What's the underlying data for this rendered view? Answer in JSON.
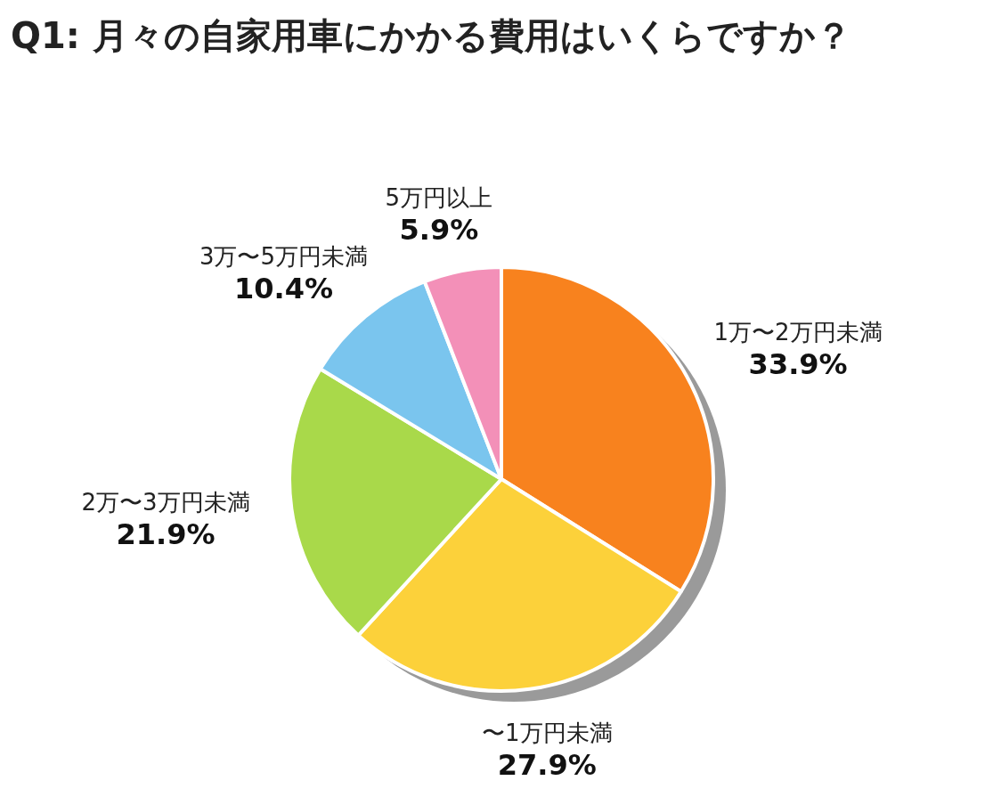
{
  "chart_data": {
    "type": "pie",
    "title": "Q1: 月々の自家用車にかかる費用はいくらですか？",
    "categories": [
      "1万〜2万円未満",
      "〜1万円未満",
      "2万〜3万円未満",
      "3万〜5万円未満",
      "5万円以上"
    ],
    "values": [
      33.9,
      27.9,
      21.9,
      10.4,
      5.9
    ],
    "value_labels": [
      "33.9%",
      "27.9%",
      "21.9%",
      "10.4%",
      "5.9%"
    ],
    "colors": [
      "#f8821e",
      "#fcd13a",
      "#a9d94a",
      "#7ac5ee",
      "#f390b8"
    ]
  }
}
